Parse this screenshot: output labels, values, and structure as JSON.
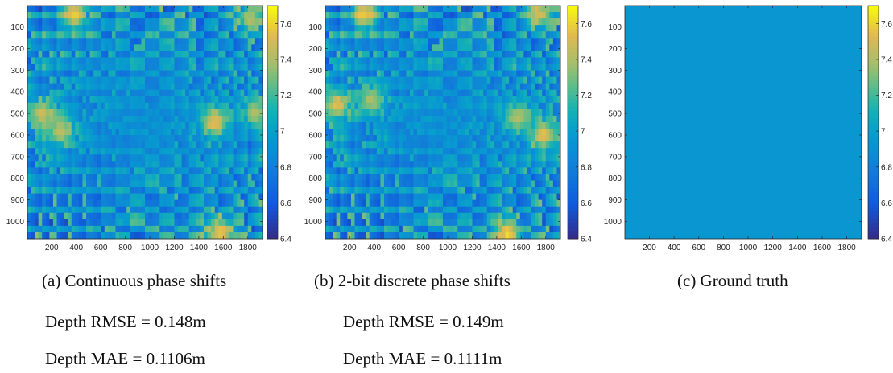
{
  "chart_data": [
    {
      "type": "heatmap",
      "caption": "(a) Continuous phase shifts",
      "metrics": [
        "Depth RMSE = 0.148m",
        "Depth MAE = 0.1106m"
      ],
      "x_ticks": [
        200,
        400,
        600,
        800,
        1000,
        1200,
        1400,
        1600,
        1800
      ],
      "y_ticks": [
        100,
        200,
        300,
        400,
        500,
        600,
        700,
        800,
        900,
        1000
      ],
      "xlim": [
        1,
        1920
      ],
      "ylim": [
        1,
        1080
      ],
      "colorbar": {
        "ticks": [
          6.4,
          6.6,
          6.8,
          7,
          7.2,
          7.4,
          7.6
        ],
        "range": [
          6.4,
          7.7
        ]
      },
      "field": {
        "center": 6.92,
        "ring_amplitude": 0.35,
        "hotspots": [
          [
            380,
            40,
            7.6
          ],
          [
            120,
            500,
            7.5
          ],
          [
            1530,
            540,
            7.55
          ],
          [
            1580,
            1050,
            7.6
          ],
          [
            1870,
            500,
            7.4
          ],
          [
            280,
            580,
            7.45
          ],
          [
            1820,
            60,
            7.4
          ]
        ]
      }
    },
    {
      "type": "heatmap",
      "caption": "(b) 2-bit discrete phase shifts",
      "metrics": [
        "Depth RMSE = 0.149m",
        "Depth MAE = 0.1111m"
      ],
      "x_ticks": [
        200,
        400,
        600,
        800,
        1000,
        1200,
        1400,
        1600,
        1800
      ],
      "y_ticks": [
        100,
        200,
        300,
        400,
        500,
        600,
        700,
        800,
        900,
        1000
      ],
      "xlim": [
        1,
        1920
      ],
      "ylim": [
        1,
        1080
      ],
      "colorbar": {
        "ticks": [
          6.4,
          6.6,
          6.8,
          7,
          7.2,
          7.4,
          7.6
        ],
        "range": [
          6.4,
          7.7
        ]
      },
      "field": {
        "center": 6.92,
        "ring_amplitude": 0.36,
        "hotspots": [
          [
            320,
            40,
            7.6
          ],
          [
            100,
            460,
            7.55
          ],
          [
            1500,
            1060,
            7.6
          ],
          [
            1780,
            600,
            7.55
          ],
          [
            380,
            440,
            7.4
          ],
          [
            1570,
            520,
            7.4
          ],
          [
            1750,
            40,
            7.5
          ]
        ]
      }
    },
    {
      "type": "heatmap",
      "caption": "(c) Ground truth",
      "metrics": [],
      "x_ticks": [
        200,
        400,
        600,
        800,
        1000,
        1200,
        1400,
        1600,
        1800
      ],
      "y_ticks": [
        100,
        200,
        300,
        400,
        500,
        600,
        700,
        800,
        900,
        1000
      ],
      "xlim": [
        1,
        1920
      ],
      "ylim": [
        1,
        1080
      ],
      "colorbar": {
        "ticks": [
          6.4,
          6.6,
          6.8,
          7,
          7.2,
          7.4,
          7.6
        ],
        "range": [
          6.4,
          7.7
        ]
      },
      "field": {
        "constant": 6.95
      }
    }
  ]
}
